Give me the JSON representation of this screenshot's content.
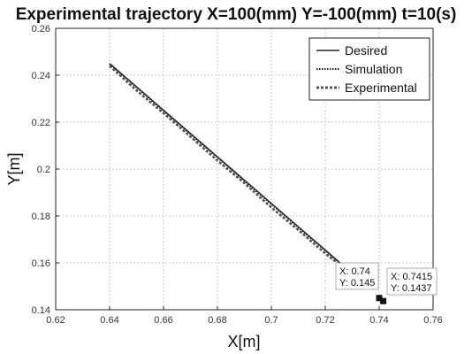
{
  "chart_data": {
    "type": "line",
    "title": "Experimental trajectory X=100(mm) Y=-100(mm) t=10(s)",
    "xlabel": "X[m]",
    "ylabel": "Y[m]",
    "xlim": [
      0.62,
      0.76
    ],
    "ylim": [
      0.14,
      0.26
    ],
    "xticks": [
      0.62,
      0.64,
      0.66,
      0.68,
      0.7,
      0.72,
      0.74,
      0.76
    ],
    "yticks": [
      0.14,
      0.16,
      0.18,
      0.2,
      0.22,
      0.24,
      0.26
    ],
    "xtick_labels": [
      "0.62",
      "0.64",
      "0.66",
      "0.68",
      "0.7",
      "0.72",
      "0.74",
      "0.76"
    ],
    "ytick_labels": [
      "0.14",
      "0.16",
      "0.18",
      "0.2",
      "0.22",
      "0.24",
      "0.26"
    ],
    "grid": true,
    "legend_position": "top-right",
    "series": [
      {
        "name": "Desired",
        "style": "solid",
        "color": "#222222",
        "x": [
          0.64,
          0.7255
        ],
        "y": [
          0.245,
          0.16
        ]
      },
      {
        "name": "Simulation",
        "style": "dotted",
        "color": "#222222",
        "x": [
          0.64,
          0.66,
          0.68,
          0.7,
          0.7255
        ],
        "y": [
          0.2448,
          0.2248,
          0.2049,
          0.185,
          0.1598
        ]
      },
      {
        "name": "Experimental",
        "style": "dashed",
        "color": "#555555",
        "x": [
          0.64,
          0.65,
          0.66,
          0.67,
          0.68,
          0.69,
          0.7,
          0.71,
          0.72,
          0.7255
        ],
        "y": [
          0.244,
          0.2335,
          0.2238,
          0.2138,
          0.2036,
          0.194,
          0.1836,
          0.174,
          0.164,
          0.159
        ]
      }
    ],
    "markers": [
      {
        "x": 0.74,
        "y": 0.145
      },
      {
        "x": 0.7415,
        "y": 0.1437
      }
    ],
    "datatips": [
      {
        "x_label": "X: 0.74",
        "y_label": "Y: 0.145"
      },
      {
        "x_label": "X: 0.7415",
        "y_label": "Y: 0.1437"
      }
    ]
  }
}
